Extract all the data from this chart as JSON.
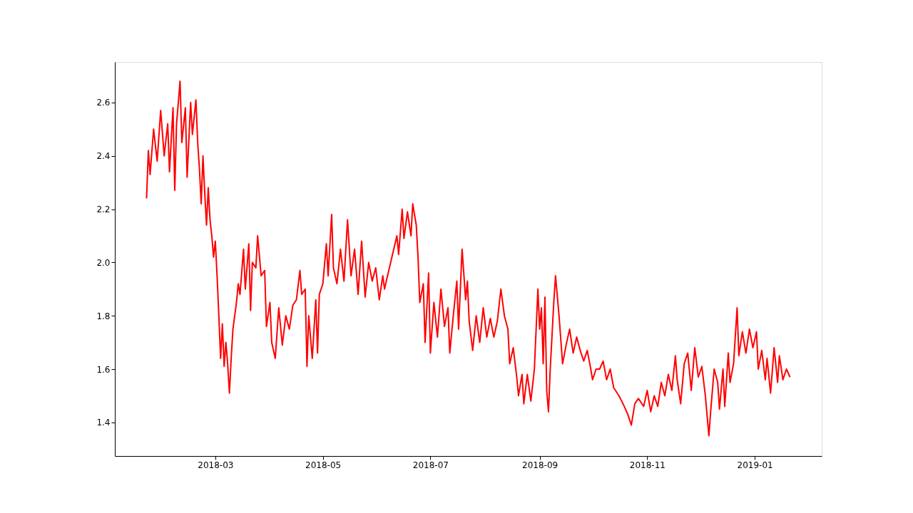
{
  "chart_data": {
    "type": "line",
    "x": [
      "2018-01-21",
      "2018-01-22",
      "2018-01-23",
      "2018-01-25",
      "2018-01-27",
      "2018-01-29",
      "2018-01-31",
      "2018-02-02",
      "2018-02-03",
      "2018-02-05",
      "2018-02-06",
      "2018-02-07",
      "2018-02-09",
      "2018-02-10",
      "2018-02-12",
      "2018-02-13",
      "2018-02-15",
      "2018-02-16",
      "2018-02-18",
      "2018-02-19",
      "2018-02-20",
      "2018-02-21",
      "2018-02-22",
      "2018-02-23",
      "2018-02-24",
      "2018-02-25",
      "2018-02-26",
      "2018-02-27",
      "2018-02-28",
      "2018-03-01",
      "2018-03-02",
      "2018-03-03",
      "2018-03-04",
      "2018-03-05",
      "2018-03-06",
      "2018-03-07",
      "2018-03-08",
      "2018-03-09",
      "2018-03-10",
      "2018-03-11",
      "2018-03-13",
      "2018-03-14",
      "2018-03-15",
      "2018-03-17",
      "2018-03-18",
      "2018-03-20",
      "2018-03-21",
      "2018-03-22",
      "2018-03-24",
      "2018-03-25",
      "2018-03-27",
      "2018-03-29",
      "2018-03-30",
      "2018-04-01",
      "2018-04-02",
      "2018-04-04",
      "2018-04-06",
      "2018-04-08",
      "2018-04-10",
      "2018-04-12",
      "2018-04-14",
      "2018-04-16",
      "2018-04-18",
      "2018-04-19",
      "2018-04-21",
      "2018-04-22",
      "2018-04-23",
      "2018-04-25",
      "2018-04-27",
      "2018-04-28",
      "2018-04-29",
      "2018-05-01",
      "2018-05-03",
      "2018-05-04",
      "2018-05-06",
      "2018-05-07",
      "2018-05-09",
      "2018-05-11",
      "2018-05-13",
      "2018-05-15",
      "2018-05-17",
      "2018-05-19",
      "2018-05-21",
      "2018-05-23",
      "2018-05-25",
      "2018-05-27",
      "2018-05-29",
      "2018-05-31",
      "2018-06-02",
      "2018-06-04",
      "2018-06-05",
      "2018-06-06",
      "2018-06-12",
      "2018-06-13",
      "2018-06-15",
      "2018-06-16",
      "2018-06-18",
      "2018-06-20",
      "2018-06-21",
      "2018-06-23",
      "2018-06-24",
      "2018-06-25",
      "2018-06-27",
      "2018-06-28",
      "2018-06-30",
      "2018-07-01",
      "2018-07-03",
      "2018-07-05",
      "2018-07-07",
      "2018-07-09",
      "2018-07-11",
      "2018-07-12",
      "2018-07-14",
      "2018-07-16",
      "2018-07-17",
      "2018-07-19",
      "2018-07-21",
      "2018-07-22",
      "2018-07-23",
      "2018-07-25",
      "2018-07-27",
      "2018-07-29",
      "2018-07-31",
      "2018-08-02",
      "2018-08-04",
      "2018-08-06",
      "2018-08-08",
      "2018-08-10",
      "2018-08-12",
      "2018-08-14",
      "2018-08-15",
      "2018-08-17",
      "2018-08-19",
      "2018-08-20",
      "2018-08-22",
      "2018-08-23",
      "2018-08-25",
      "2018-08-27",
      "2018-08-29",
      "2018-08-31",
      "2018-09-01",
      "2018-09-02",
      "2018-09-03",
      "2018-09-04",
      "2018-09-05",
      "2018-09-06",
      "2018-09-07",
      "2018-09-09",
      "2018-09-10",
      "2018-09-12",
      "2018-09-14",
      "2018-09-16",
      "2018-09-18",
      "2018-09-20",
      "2018-09-22",
      "2018-09-24",
      "2018-09-26",
      "2018-09-28",
      "2018-09-30",
      "2018-10-01",
      "2018-10-03",
      "2018-10-05",
      "2018-10-07",
      "2018-10-09",
      "2018-10-11",
      "2018-10-13",
      "2018-10-16",
      "2018-10-19",
      "2018-10-21",
      "2018-10-23",
      "2018-10-25",
      "2018-10-27",
      "2018-10-30",
      "2018-11-01",
      "2018-11-03",
      "2018-11-05",
      "2018-11-07",
      "2018-11-09",
      "2018-11-11",
      "2018-11-13",
      "2018-11-15",
      "2018-11-17",
      "2018-11-18",
      "2018-11-20",
      "2018-11-22",
      "2018-11-24",
      "2018-11-26",
      "2018-11-28",
      "2018-11-30",
      "2018-12-02",
      "2018-12-04",
      "2018-12-06",
      "2018-12-07",
      "2018-12-09",
      "2018-12-11",
      "2018-12-12",
      "2018-12-14",
      "2018-12-15",
      "2018-12-17",
      "2018-12-18",
      "2018-12-20",
      "2018-12-22",
      "2018-12-23",
      "2018-12-25",
      "2018-12-27",
      "2018-12-29",
      "2018-12-31",
      "2019-01-02",
      "2019-01-03",
      "2019-01-05",
      "2019-01-07",
      "2019-01-08",
      "2019-01-10",
      "2019-01-12",
      "2019-01-14",
      "2019-01-15",
      "2019-01-17",
      "2019-01-19",
      "2019-01-21"
    ],
    "series": [
      {
        "color": "#ff0000",
        "values": [
          2.24,
          2.42,
          2.33,
          2.5,
          2.38,
          2.57,
          2.4,
          2.52,
          2.34,
          2.58,
          2.27,
          2.52,
          2.68,
          2.45,
          2.58,
          2.32,
          2.6,
          2.48,
          2.61,
          2.45,
          2.35,
          2.22,
          2.4,
          2.26,
          2.14,
          2.28,
          2.16,
          2.1,
          2.02,
          2.08,
          1.95,
          1.8,
          1.64,
          1.77,
          1.61,
          1.7,
          1.62,
          1.51,
          1.64,
          1.75,
          1.85,
          1.92,
          1.88,
          2.05,
          1.9,
          2.07,
          1.82,
          2.0,
          1.98,
          2.1,
          1.95,
          1.97,
          1.76,
          1.85,
          1.7,
          1.64,
          1.83,
          1.69,
          1.8,
          1.75,
          1.84,
          1.86,
          1.97,
          1.88,
          1.9,
          1.61,
          1.8,
          1.64,
          1.86,
          1.66,
          1.88,
          1.92,
          2.07,
          1.95,
          2.18,
          1.98,
          1.92,
          2.05,
          1.93,
          2.16,
          1.95,
          2.05,
          1.88,
          2.08,
          1.87,
          2.0,
          1.93,
          1.98,
          1.86,
          1.95,
          1.9,
          1.93,
          2.1,
          2.03,
          2.2,
          2.09,
          2.19,
          2.1,
          2.22,
          2.14,
          2.02,
          1.85,
          1.92,
          1.7,
          1.96,
          1.66,
          1.85,
          1.72,
          1.9,
          1.76,
          1.83,
          1.66,
          1.8,
          1.93,
          1.75,
          2.05,
          1.86,
          1.93,
          1.78,
          1.67,
          1.8,
          1.7,
          1.83,
          1.72,
          1.79,
          1.72,
          1.78,
          1.9,
          1.8,
          1.75,
          1.62,
          1.68,
          1.57,
          1.5,
          1.58,
          1.47,
          1.58,
          1.48,
          1.6,
          1.9,
          1.75,
          1.83,
          1.62,
          1.87,
          1.52,
          1.44,
          1.6,
          1.85,
          1.95,
          1.8,
          1.62,
          1.69,
          1.75,
          1.66,
          1.72,
          1.67,
          1.63,
          1.67,
          1.6,
          1.56,
          1.6,
          1.6,
          1.63,
          1.56,
          1.6,
          1.53,
          1.5,
          1.46,
          1.43,
          1.39,
          1.47,
          1.49,
          1.46,
          1.52,
          1.44,
          1.5,
          1.46,
          1.55,
          1.5,
          1.58,
          1.52,
          1.65,
          1.56,
          1.47,
          1.62,
          1.66,
          1.52,
          1.68,
          1.57,
          1.61,
          1.5,
          1.35,
          1.44,
          1.6,
          1.55,
          1.45,
          1.6,
          1.46,
          1.66,
          1.55,
          1.62,
          1.83,
          1.65,
          1.74,
          1.66,
          1.75,
          1.68,
          1.74,
          1.6,
          1.67,
          1.56,
          1.64,
          1.51,
          1.68,
          1.55,
          1.65,
          1.56,
          1.6,
          1.57
        ]
      }
    ],
    "xlim": [
      "2018-01-03",
      "2019-02-08"
    ],
    "xticks": [
      "2018-03",
      "2018-05",
      "2018-07",
      "2018-09",
      "2018-11",
      "2019-01"
    ],
    "ylim": [
      1.274,
      2.752
    ],
    "yticks": [
      1.4,
      1.6,
      1.8,
      {
        "value": 2.0,
        "label": "2.0"
      },
      2.2,
      2.4,
      2.6
    ],
    "grid": false
  }
}
